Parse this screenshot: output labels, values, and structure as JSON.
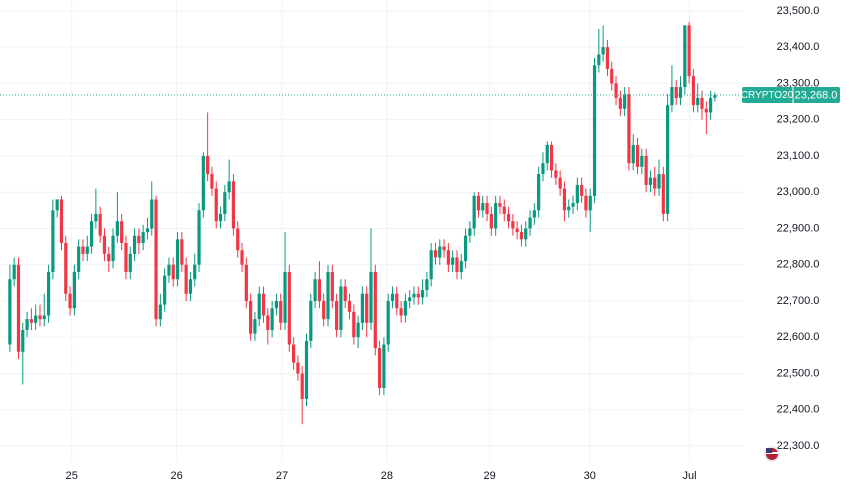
{
  "chart_data": {
    "type": "candlestick",
    "up_color": "#089981",
    "down_color": "#f23645",
    "grid": true,
    "ylim": [
      22256,
      23530
    ],
    "yticks": [
      {
        "value": 22300,
        "label": "22,300.0"
      },
      {
        "value": 22400,
        "label": "22,400.0"
      },
      {
        "value": 22500,
        "label": "22,500.0"
      },
      {
        "value": 22600,
        "label": "22,600.0"
      },
      {
        "value": 22700,
        "label": "22,700.0"
      },
      {
        "value": 22800,
        "label": "22,800.0"
      },
      {
        "value": 22900,
        "label": "22,900.0"
      },
      {
        "value": 23000,
        "label": "23,000.0"
      },
      {
        "value": 23100,
        "label": "23,100.0"
      },
      {
        "value": 23200,
        "label": "23,200.0"
      },
      {
        "value": 23300,
        "label": "23,300.0"
      },
      {
        "value": 23400,
        "label": "23,400.0"
      },
      {
        "value": 23500,
        "label": "23,500.0"
      }
    ],
    "xlim": [
      -2.3,
      171
    ],
    "xticks": [
      {
        "value": 14.4,
        "label": "25"
      },
      {
        "value": 38.8,
        "label": "26"
      },
      {
        "value": 63.3,
        "label": "27"
      },
      {
        "value": 87.7,
        "label": "28"
      },
      {
        "value": 111.6,
        "label": "29"
      },
      {
        "value": 134.9,
        "label": "30"
      },
      {
        "value": 158.1,
        "label": "Jul"
      }
    ],
    "price_line": {
      "name": "CRYPTO20",
      "value": 23268,
      "label": "23,268.0",
      "color": "#22ab94"
    },
    "open": [
      22580,
      22760,
      22800,
      22560,
      22620,
      22650,
      22640,
      22660,
      22650,
      22660,
      22780,
      22950,
      22980,
      22860,
      22720,
      22680,
      22780,
      22850,
      22830,
      22850,
      22920,
      22940,
      22880,
      22830,
      22810,
      22880,
      22920,
      22860,
      22780,
      22830,
      22880,
      22860,
      22890,
      22900,
      22980,
      22650,
      22690,
      22770,
      22800,
      22760,
      22870,
      22800,
      22720,
      22760,
      22800,
      22950,
      23100,
      23050,
      23010,
      22920,
      22940,
      23000,
      23030,
      22900,
      22840,
      22800,
      22700,
      22610,
      22650,
      22720,
      22660,
      22620,
      22680,
      22700,
      22640,
      22780,
      22580,
      22530,
      22500,
      22430,
      22590,
      22700,
      22760,
      22700,
      22650,
      22780,
      22700,
      22620,
      22740,
      22700,
      22670,
      22600,
      22640,
      22720,
      22640,
      22780,
      22570,
      22460,
      22580,
      22700,
      22720,
      22680,
      22660,
      22700,
      22710,
      22720,
      22710,
      22730,
      22760,
      22840,
      22820,
      22850,
      22840,
      22800,
      22820,
      22780,
      22810,
      22880,
      22900,
      22990,
      22950,
      22970,
      22940,
      22900,
      22970,
      22960,
      22940,
      22920,
      22900,
      22890,
      22870,
      22900,
      22930,
      22950,
      23050,
      23080,
      23130,
      23060,
      23040,
      23010,
      22950,
      22960,
      22970,
      23020,
      22990,
      22950,
      22990,
      23350,
      23380,
      23400,
      23340,
      23300,
      23260,
      23230,
      23270,
      23080,
      23130,
      23070,
      23100,
      23020,
      23040,
      23010,
      23050,
      22940,
      23240,
      23290,
      23260,
      23290,
      23460,
      23320,
      23240,
      23260,
      23230,
      23220,
      23260
    ],
    "high": [
      22800,
      22820,
      22820,
      22640,
      22670,
      22680,
      22690,
      22690,
      22720,
      22800,
      22980,
      22980,
      22990,
      22880,
      22740,
      22800,
      22870,
      22870,
      22880,
      22940,
      23010,
      22960,
      22900,
      22850,
      22900,
      23000,
      22940,
      22880,
      22850,
      22900,
      22900,
      22910,
      22930,
      23030,
      22990,
      22720,
      22790,
      22820,
      22820,
      22890,
      22890,
      22820,
      22780,
      22830,
      22970,
      23110,
      23220,
      23070,
      23030,
      22960,
      23020,
      23090,
      23050,
      22920,
      22860,
      22820,
      22720,
      22670,
      22740,
      22740,
      22680,
      22700,
      22720,
      22720,
      22890,
      22800,
      22600,
      22550,
      22520,
      22610,
      22720,
      22780,
      22810,
      22720,
      22800,
      22800,
      22720,
      22760,
      22760,
      22720,
      22690,
      22660,
      22740,
      22740,
      22900,
      22800,
      22590,
      22600,
      22720,
      22740,
      22740,
      22700,
      22720,
      22730,
      22740,
      22740,
      22760,
      22780,
      22860,
      22860,
      22870,
      22870,
      22860,
      22840,
      22840,
      22830,
      22900,
      22920,
      23000,
      23000,
      22990,
      22990,
      22960,
      22990,
      22990,
      22980,
      22960,
      22940,
      22920,
      22910,
      22920,
      22950,
      22970,
      23070,
      23110,
      23140,
      23140,
      23080,
      23060,
      23030,
      22980,
      22990,
      23040,
      23040,
      23010,
      23010,
      23370,
      23450,
      23460,
      23420,
      23360,
      23320,
      23280,
      23290,
      23290,
      23160,
      23150,
      23120,
      23120,
      23060,
      23070,
      23090,
      23070,
      23270,
      23350,
      23310,
      23320,
      23460,
      23470,
      23340,
      23300,
      23280,
      23250,
      23280,
      23275
    ],
    "low": [
      22560,
      22740,
      22540,
      22470,
      22600,
      22620,
      22620,
      22630,
      22630,
      22640,
      22760,
      22930,
      22840,
      22700,
      22660,
      22660,
      22760,
      22810,
      22810,
      22830,
      22900,
      22860,
      22810,
      22780,
      22790,
      22860,
      22840,
      22760,
      22760,
      22810,
      22830,
      22840,
      22870,
      22880,
      22630,
      22630,
      22670,
      22750,
      22740,
      22740,
      22780,
      22700,
      22700,
      22740,
      22780,
      22930,
      23030,
      22990,
      22900,
      22900,
      22920,
      22980,
      22880,
      22820,
      22780,
      22680,
      22590,
      22590,
      22630,
      22640,
      22580,
      22600,
      22660,
      22620,
      22620,
      22560,
      22510,
      22480,
      22360,
      22410,
      22570,
      22680,
      22680,
      22630,
      22630,
      22680,
      22600,
      22600,
      22680,
      22650,
      22580,
      22570,
      22620,
      22600,
      22620,
      22550,
      22440,
      22440,
      22560,
      22680,
      22660,
      22640,
      22640,
      22680,
      22690,
      22690,
      22690,
      22710,
      22740,
      22800,
      22800,
      22820,
      22780,
      22780,
      22760,
      22760,
      22790,
      22860,
      22880,
      22930,
      22930,
      22920,
      22880,
      22880,
      22940,
      22920,
      22900,
      22880,
      22870,
      22850,
      22850,
      22880,
      22910,
      22930,
      23030,
      23060,
      23040,
      23020,
      22990,
      22920,
      22930,
      22940,
      22950,
      22970,
      22930,
      22890,
      22970,
      23330,
      23360,
      23320,
      23280,
      23240,
      23210,
      23210,
      23060,
      23060,
      23050,
      23050,
      23000,
      23000,
      22990,
      22990,
      22920,
      22920,
      23220,
      23240,
      23240,
      23270,
      23300,
      23220,
      23220,
      23200,
      23160,
      23200,
      23250
    ],
    "close": [
      22760,
      22800,
      22560,
      22620,
      22650,
      22640,
      22660,
      22650,
      22660,
      22780,
      22950,
      22980,
      22860,
      22720,
      22680,
      22780,
      22850,
      22830,
      22850,
      22920,
      22940,
      22880,
      22830,
      22810,
      22880,
      22920,
      22860,
      22780,
      22830,
      22880,
      22860,
      22890,
      22900,
      22980,
      22650,
      22690,
      22770,
      22800,
      22760,
      22870,
      22800,
      22720,
      22760,
      22800,
      22950,
      23100,
      23050,
      23010,
      22920,
      22940,
      23000,
      23030,
      22900,
      22840,
      22800,
      22700,
      22610,
      22650,
      22720,
      22660,
      22620,
      22680,
      22700,
      22640,
      22780,
      22580,
      22530,
      22500,
      22430,
      22590,
      22700,
      22760,
      22700,
      22650,
      22780,
      22700,
      22620,
      22740,
      22700,
      22670,
      22600,
      22640,
      22720,
      22640,
      22780,
      22570,
      22460,
      22580,
      22700,
      22720,
      22680,
      22660,
      22700,
      22710,
      22720,
      22710,
      22730,
      22760,
      22840,
      22820,
      22850,
      22840,
      22800,
      22820,
      22780,
      22810,
      22880,
      22900,
      22990,
      22950,
      22970,
      22940,
      22900,
      22970,
      22960,
      22940,
      22920,
      22900,
      22890,
      22870,
      22900,
      22930,
      22950,
      23050,
      23080,
      23130,
      23060,
      23040,
      23010,
      22950,
      22960,
      22970,
      23020,
      22990,
      22950,
      22990,
      23350,
      23380,
      23400,
      23340,
      23300,
      23260,
      23230,
      23270,
      23080,
      23130,
      23070,
      23100,
      23020,
      23040,
      23010,
      23050,
      22940,
      23240,
      23290,
      23260,
      23290,
      23460,
      23320,
      23240,
      23260,
      23230,
      23220,
      23260,
      23268
    ]
  }
}
